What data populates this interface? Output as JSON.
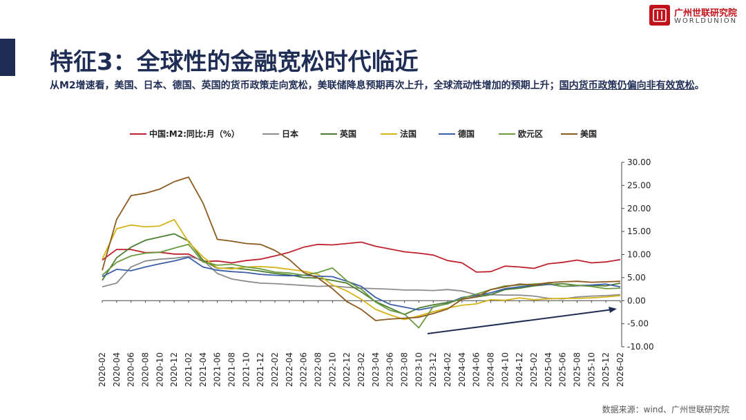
{
  "header": {
    "title": "特征3：全球性的金融宽松时代临近",
    "subtitle_main": "从M2增速看，美国、日本、德国、英国的货币政策走向宽松，美联储降息预期再次上升，全球流动性增加的预期上升；",
    "subtitle_link": "国内货币政策仍偏向非有效宽松",
    "subtitle_end": "。"
  },
  "logo": {
    "cn": "广州世联研究院",
    "en": "WORLDUNION"
  },
  "source": "数据来源：wind、广州世联研究院",
  "chart_data": {
    "type": "line",
    "ylim": [
      -10,
      30
    ],
    "yticks": [
      "30.00",
      "25.00",
      "20.00",
      "15.00",
      "10.00",
      "5.00",
      "0.00",
      "-5.00",
      "-10.00"
    ],
    "ytick_values": [
      30,
      25,
      20,
      15,
      10,
      5,
      0,
      -5,
      -10
    ],
    "x_labels": [
      "2020-02",
      "2020-04",
      "2020-06",
      "2020-08",
      "2020-10",
      "2020-12",
      "2021-02",
      "2021-04",
      "2021-06",
      "2021-08",
      "2021-10",
      "2021-12",
      "2022-02",
      "2022-04",
      "2022-06",
      "2022-08",
      "2022-10",
      "2022-12",
      "2023-02",
      "2023-04",
      "2023-06",
      "2023-08",
      "2023-10",
      "2023-12",
      "2024-02",
      "2024-04",
      "2024-06",
      "2024-08",
      "2024-10",
      "2024-12",
      "2025-02",
      "2025-04",
      "2025-06",
      "2025-08",
      "2025-10",
      "2025-12",
      "2026-02"
    ],
    "series": [
      {
        "name": "中国:M2:同比:月（%）",
        "color": "#c0202e",
        "values": [
          8.8,
          11.1,
          11.1,
          10.4,
          10.5,
          10.1,
          10.1,
          8.5,
          8.6,
          8.2,
          8.7,
          9.0,
          9.7,
          10.5,
          11.6,
          12.2,
          12.1,
          12.4,
          12.7,
          11.8,
          11.2,
          10.6,
          10.3,
          9.9,
          8.7,
          8.2,
          6.2,
          6.3,
          7.5,
          7.3,
          7.0,
          8.0,
          8.3,
          8.8,
          8.2,
          8.4,
          8.9
        ]
      },
      {
        "name": "日本",
        "color": "#8c8c8c",
        "values": [
          3.0,
          3.8,
          7.3,
          8.6,
          9.0,
          9.2,
          9.6,
          8.8,
          5.9,
          4.7,
          4.2,
          3.8,
          3.7,
          3.5,
          3.3,
          3.1,
          3.2,
          2.9,
          2.7,
          2.6,
          2.5,
          2.3,
          2.3,
          2.2,
          2.4,
          2.1,
          1.3,
          1.3,
          1.2,
          1.2,
          1.0,
          0.5,
          0.4,
          0.8,
          1.0,
          1.1,
          1.3
        ]
      },
      {
        "name": "英国",
        "color": "#4a7d2e",
        "values": [
          4.4,
          9.3,
          11.6,
          13.1,
          13.8,
          14.5,
          12.9,
          8.8,
          7.0,
          7.1,
          6.8,
          6.4,
          5.9,
          5.6,
          5.0,
          4.9,
          4.4,
          3.8,
          1.9,
          -0.2,
          -1.6,
          -3.0,
          -1.6,
          -0.9,
          -0.4,
          0.3,
          0.8,
          1.3,
          2.4,
          2.7,
          3.2,
          3.5,
          3.7,
          3.3,
          3.3,
          3.2,
          3.8
        ]
      },
      {
        "name": "法国",
        "color": "#d4b416",
        "values": [
          9.0,
          15.6,
          16.4,
          16.0,
          16.2,
          17.6,
          12.7,
          9.5,
          7.1,
          6.9,
          7.3,
          7.4,
          7.2,
          6.8,
          6.4,
          5.7,
          3.4,
          2.1,
          0.3,
          -1.9,
          -3.1,
          -4.1,
          -3.3,
          -2.4,
          -1.6,
          -1.0,
          -0.7,
          0.2,
          0.1,
          0.6,
          0.2,
          0.4,
          0.5,
          0.5,
          0.6,
          0.8,
          1.1
        ]
      },
      {
        "name": "德国",
        "color": "#3a5ea8",
        "values": [
          5.2,
          6.8,
          6.5,
          7.3,
          8.0,
          8.6,
          9.4,
          7.3,
          6.6,
          6.3,
          6.1,
          5.7,
          5.5,
          5.4,
          5.5,
          5.3,
          5.2,
          4.2,
          3.1,
          0.7,
          -0.8,
          -1.4,
          -2.0,
          -1.4,
          -0.6,
          0.7,
          1.1,
          1.7,
          2.6,
          3.0,
          3.4,
          3.6,
          3.1,
          3.2,
          3.4,
          3.6,
          3.0
        ]
      },
      {
        "name": "欧元区",
        "color": "#6a9a3e",
        "values": [
          5.5,
          8.3,
          9.7,
          10.3,
          10.5,
          11.4,
          12.2,
          8.4,
          7.7,
          7.9,
          7.3,
          6.9,
          6.2,
          6.0,
          5.5,
          6.1,
          7.1,
          4.3,
          2.5,
          -0.3,
          -2.1,
          -2.9,
          -5.9,
          -1.3,
          -0.7,
          0.5,
          1.4,
          2.4,
          3.2,
          3.4,
          3.6,
          3.8,
          3.1,
          3.3,
          3.1,
          2.6,
          2.7
        ]
      },
      {
        "name": "美国",
        "color": "#8c5a1e",
        "values": [
          6.6,
          17.6,
          22.8,
          23.3,
          24.2,
          25.8,
          26.8,
          21.2,
          13.3,
          12.9,
          12.4,
          12.2,
          10.9,
          8.9,
          6.1,
          4.9,
          2.6,
          -0.2,
          -1.9,
          -4.3,
          -4.0,
          -3.8,
          -3.6,
          -2.8,
          -1.8,
          0.3,
          0.8,
          2.4,
          3.0,
          3.6,
          3.4,
          3.9,
          4.1,
          4.2,
          4.0,
          4.1,
          4.2
        ]
      }
    ],
    "annotation": "upward-trend-arrow"
  }
}
